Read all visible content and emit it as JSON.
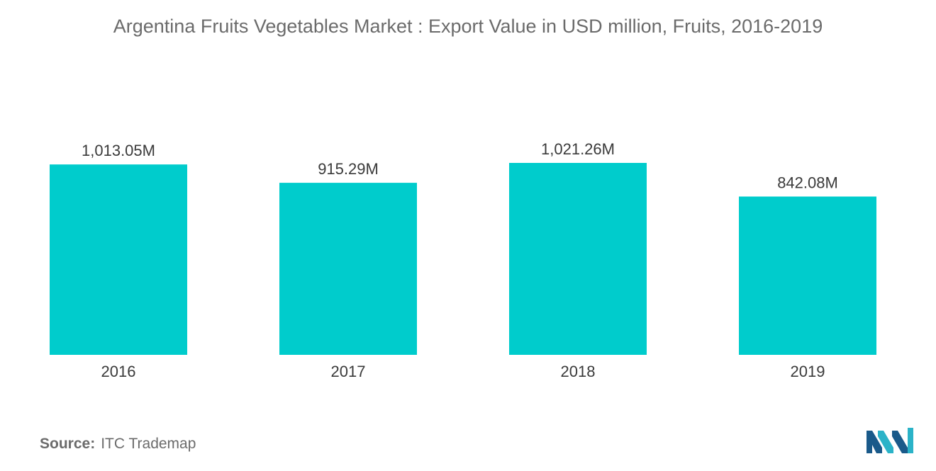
{
  "chart_data": {
    "type": "bar",
    "title": "Argentina Fruits  Vegetables Market : Export Value in USD million, Fruits, 2016-2019",
    "categories": [
      "2016",
      "2017",
      "2018",
      "2019"
    ],
    "values": [
      1013.05,
      915.29,
      1021.26,
      842.08
    ],
    "data_labels": [
      "1,013.05M",
      "915.29M",
      "1,021.26M",
      "842.08M"
    ],
    "xlabel": "",
    "ylabel": "",
    "ylim": [
      0,
      1021.26
    ],
    "grid": false,
    "legend": "none",
    "bar_color": "#00cccc"
  },
  "source": {
    "label": "Source:",
    "text": "ITC Trademap"
  },
  "logo": {
    "icon": "mordor-intelligence-logo-icon",
    "colors": [
      "#1a5a8a",
      "#2bb3c8"
    ]
  }
}
